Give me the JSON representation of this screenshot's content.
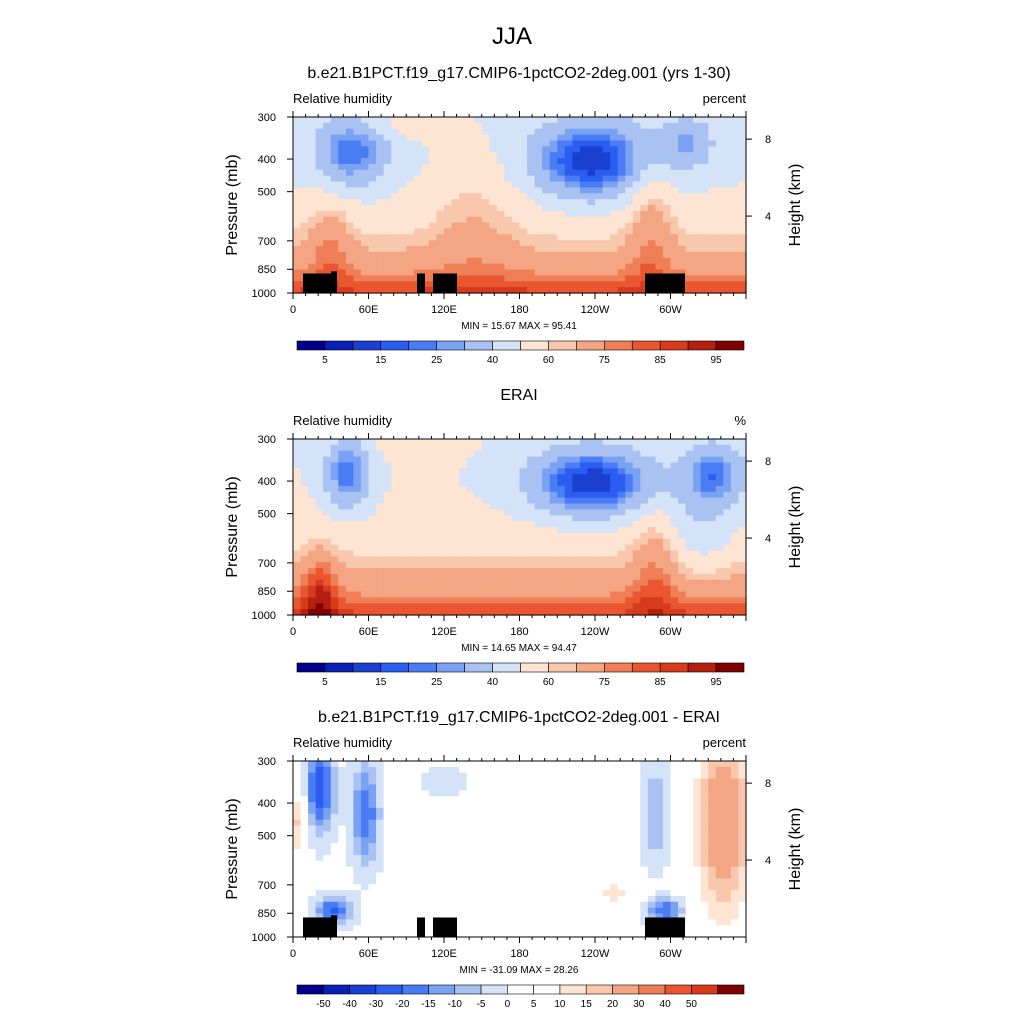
{
  "figure": {
    "title": "JJA"
  },
  "chart_data": [
    {
      "type": "heatmap",
      "title": "b.e21.B1PCT.f19_g17.CMIP6-1pctCO2-2deg.001 (yrs 1-30)",
      "left_label": "Relative humidity",
      "units": "percent",
      "ylabel": "Pressure (mb)",
      "ylabel_right": "Height (km)",
      "x_ticks": [
        "0",
        "60E",
        "120E",
        "180",
        "120W",
        "60W"
      ],
      "y_ticks": [
        "300",
        "400",
        "500",
        "700",
        "850",
        "1000"
      ],
      "y_ticks_right": [
        "8",
        "4"
      ],
      "stats": "MIN =  15.67  MAX =  95.41",
      "colorbar_labels": [
        "5",
        "15",
        "25",
        "40",
        "60",
        "75",
        "85",
        "95"
      ],
      "has_topography": true
    },
    {
      "type": "heatmap",
      "title": "ERAI",
      "left_label": "Relative humidity",
      "units": "%",
      "ylabel": "Pressure (mb)",
      "ylabel_right": "Height (km)",
      "x_ticks": [
        "0",
        "60E",
        "120E",
        "180",
        "120W",
        "60W"
      ],
      "y_ticks": [
        "300",
        "400",
        "500",
        "700",
        "850",
        "1000"
      ],
      "y_ticks_right": [
        "8",
        "4"
      ],
      "stats": "MIN =  14.65  MAX =  94.47",
      "colorbar_labels": [
        "5",
        "15",
        "25",
        "40",
        "60",
        "75",
        "85",
        "95"
      ],
      "has_topography": false
    },
    {
      "type": "heatmap",
      "title": "b.e21.B1PCT.f19_g17.CMIP6-1pctCO2-2deg.001 - ERAI",
      "left_label": "Relative humidity",
      "units": "percent",
      "ylabel": "Pressure (mb)",
      "ylabel_right": "Height (km)",
      "x_ticks": [
        "0",
        "60E",
        "120E",
        "180",
        "120W",
        "60W"
      ],
      "y_ticks": [
        "300",
        "400",
        "500",
        "700",
        "850",
        "1000"
      ],
      "y_ticks_right": [
        "8",
        "4"
      ],
      "stats": "MIN = -31.09  MAX =  28.26",
      "colorbar_labels": [
        "-50",
        "-40",
        "-30",
        "-20",
        "-15",
        "-10",
        "-5",
        "0",
        "5",
        "10",
        "15",
        "20",
        "30",
        "40",
        "50"
      ],
      "has_topography": true
    }
  ],
  "colors": {
    "abs_scale": [
      "#00008b",
      "#0a1fb5",
      "#1a3fd1",
      "#2b5ef0",
      "#4a7df5",
      "#7aa2f4",
      "#a9c2f2",
      "#d4e3f7",
      "#fde4d3",
      "#f8c7ac",
      "#f4a583",
      "#ef7f57",
      "#ea5630",
      "#d73a1c",
      "#b51f10",
      "#7f0000"
    ],
    "diff_scale": [
      "#00008b",
      "#0a1fb5",
      "#1a3fd1",
      "#2b5ef0",
      "#4a7df5",
      "#7aa2f4",
      "#a9c2f2",
      "#d4e3f7",
      "#ffffff",
      "#ffffff",
      "#fde4d3",
      "#f8c7ac",
      "#f4a583",
      "#ef7f57",
      "#ea5630",
      "#d73a1c",
      "#7f0000"
    ]
  }
}
